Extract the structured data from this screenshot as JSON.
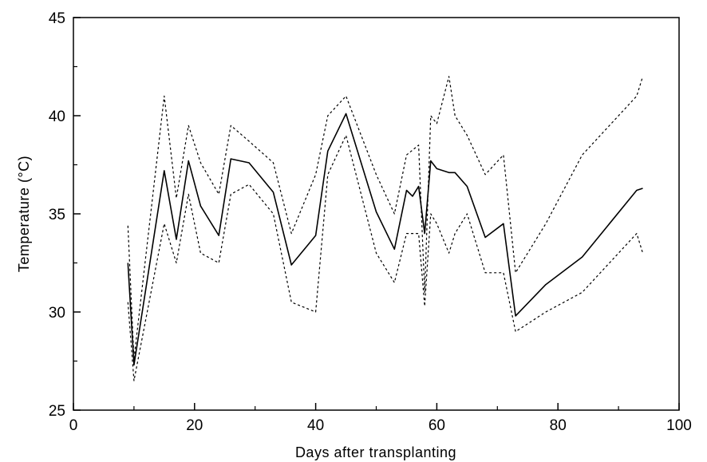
{
  "chart_data": {
    "type": "line",
    "title": "",
    "xlabel": "Days after transplanting",
    "ylabel": "Temperature (°C)",
    "xlim": [
      0,
      100
    ],
    "ylim": [
      25,
      45
    ],
    "xticks": [
      0,
      20,
      40,
      60,
      80,
      100
    ],
    "yticks": [
      25,
      30,
      35,
      40,
      45
    ],
    "grid": false,
    "legend": "none",
    "series": [
      {
        "style": "solid",
        "color": "#000000",
        "points": [
          [
            9,
            32.5
          ],
          [
            10,
            27.3
          ],
          [
            15,
            37.2
          ],
          [
            17,
            33.7
          ],
          [
            19,
            37.7
          ],
          [
            21,
            35.4
          ],
          [
            24,
            33.9
          ],
          [
            26,
            37.8
          ],
          [
            29,
            37.6
          ],
          [
            33,
            36.1
          ],
          [
            36,
            32.4
          ],
          [
            40,
            33.9
          ],
          [
            42,
            38.2
          ],
          [
            45,
            40.1
          ],
          [
            50,
            35.1
          ],
          [
            53,
            33.2
          ],
          [
            55,
            36.2
          ],
          [
            56,
            35.9
          ],
          [
            57,
            36.4
          ],
          [
            58,
            34.0
          ],
          [
            59,
            37.7
          ],
          [
            60,
            37.3
          ],
          [
            62,
            37.1
          ],
          [
            63,
            37.1
          ],
          [
            65,
            36.4
          ],
          [
            68,
            33.8
          ],
          [
            71,
            34.5
          ],
          [
            73,
            29.8
          ],
          [
            78,
            31.4
          ],
          [
            84,
            32.8
          ],
          [
            93,
            36.2
          ],
          [
            94,
            36.3
          ]
        ]
      },
      {
        "style": "dashed",
        "color": "#000000",
        "points": [
          [
            9,
            34.4
          ],
          [
            10,
            27.6
          ],
          [
            15,
            41.0
          ],
          [
            17,
            35.8
          ],
          [
            19,
            39.5
          ],
          [
            21,
            37.6
          ],
          [
            24,
            36.0
          ],
          [
            26,
            39.5
          ],
          [
            29,
            38.7
          ],
          [
            33,
            37.6
          ],
          [
            36,
            34.0
          ],
          [
            40,
            37.0
          ],
          [
            42,
            40.0
          ],
          [
            45,
            41.0
          ],
          [
            50,
            37.0
          ],
          [
            53,
            35.0
          ],
          [
            55,
            38.0
          ],
          [
            57,
            38.5
          ],
          [
            58,
            31.0
          ],
          [
            59,
            40.0
          ],
          [
            60,
            39.6
          ],
          [
            62,
            42.0
          ],
          [
            63,
            40.0
          ],
          [
            65,
            39.0
          ],
          [
            68,
            37.0
          ],
          [
            71,
            38.0
          ],
          [
            73,
            32.0
          ],
          [
            78,
            34.5
          ],
          [
            84,
            38.0
          ],
          [
            93,
            41.0
          ],
          [
            94,
            42.0
          ]
        ]
      },
      {
        "style": "dashed",
        "color": "#000000",
        "points": [
          [
            9,
            30.5
          ],
          [
            10,
            26.5
          ],
          [
            15,
            34.5
          ],
          [
            17,
            32.5
          ],
          [
            19,
            36.0
          ],
          [
            21,
            33.0
          ],
          [
            24,
            32.5
          ],
          [
            26,
            36.0
          ],
          [
            29,
            36.5
          ],
          [
            33,
            35.0
          ],
          [
            36,
            30.5
          ],
          [
            40,
            30.0
          ],
          [
            42,
            37.0
          ],
          [
            45,
            39.0
          ],
          [
            50,
            33.0
          ],
          [
            53,
            31.5
          ],
          [
            55,
            34.0
          ],
          [
            57,
            34.0
          ],
          [
            58,
            30.3
          ],
          [
            59,
            35.0
          ],
          [
            60,
            34.5
          ],
          [
            62,
            33.0
          ],
          [
            63,
            34.0
          ],
          [
            65,
            35.0
          ],
          [
            68,
            32.0
          ],
          [
            71,
            32.0
          ],
          [
            73,
            29.0
          ],
          [
            78,
            30.0
          ],
          [
            84,
            31.0
          ],
          [
            93,
            34.0
          ],
          [
            94,
            33.0
          ]
        ]
      }
    ]
  }
}
